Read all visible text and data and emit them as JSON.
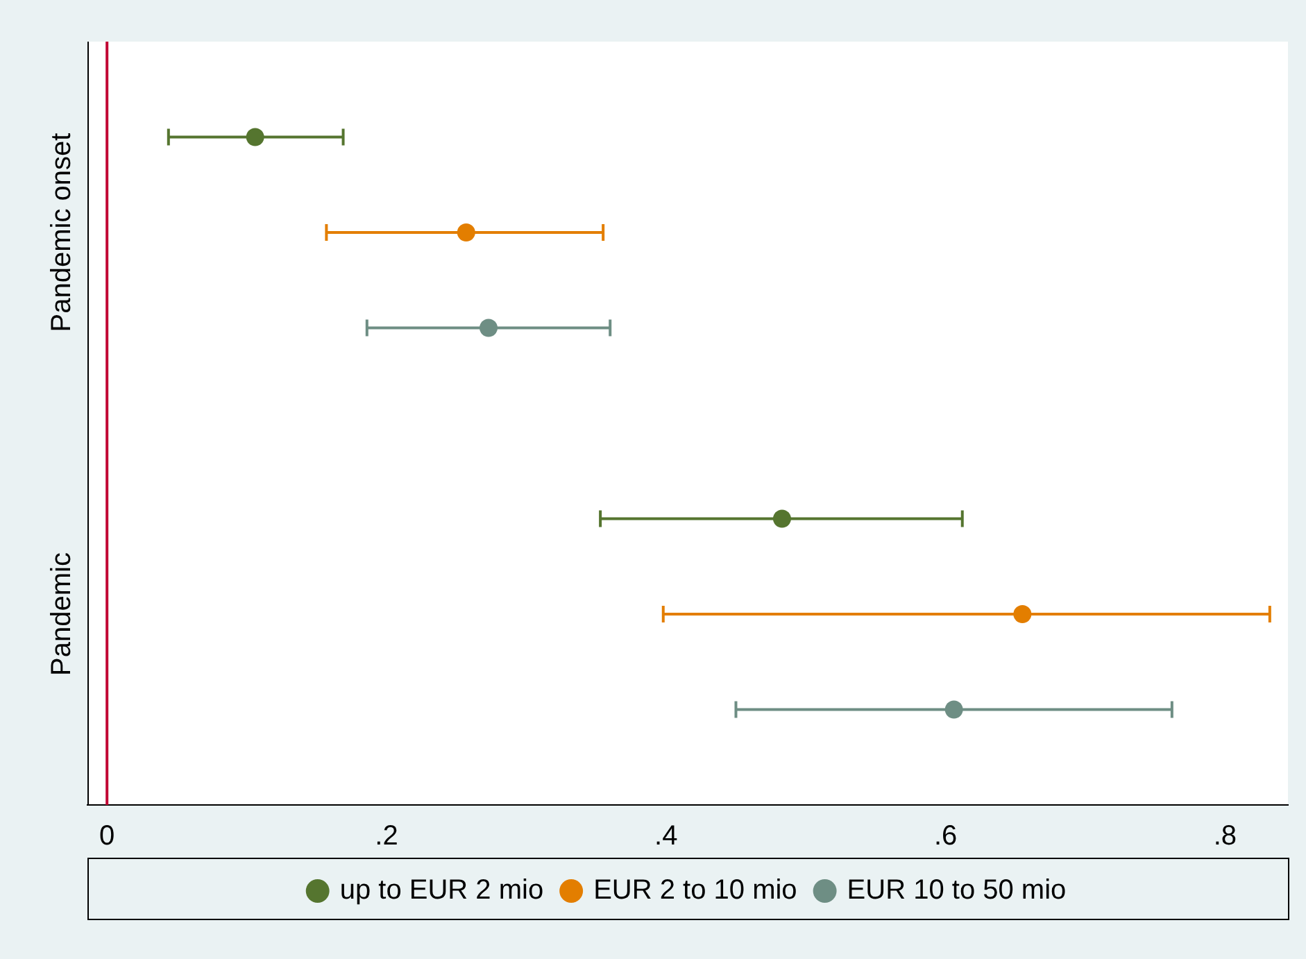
{
  "chart_data": {
    "type": "scatter",
    "orientation": "horizontal",
    "categories": [
      null,
      "Pandemic onset",
      null,
      null,
      null,
      "Pandemic",
      null
    ],
    "series": [
      {
        "name": "up to EUR 2 mio",
        "color": "#55752f",
        "values": [
          0.106,
          null,
          null,
          null,
          0.483,
          null,
          null
        ],
        "errors": [
          [
            0.044,
            0.169
          ],
          null,
          null,
          null,
          [
            0.353,
            0.612
          ],
          null,
          null
        ]
      },
      {
        "name": "EUR 2 to 10 mio",
        "color": "#e37e00",
        "values": [
          null,
          0.257,
          null,
          null,
          null,
          0.655,
          null
        ],
        "errors": [
          null,
          [
            0.157,
            0.355
          ],
          null,
          null,
          null,
          [
            0.398,
            0.832
          ],
          null
        ]
      },
      {
        "name": "EUR 10 to 50 mio",
        "color": "#6e8e84",
        "values": [
          null,
          null,
          0.273,
          null,
          null,
          null,
          0.606
        ],
        "errors": [
          null,
          null,
          [
            0.186,
            0.36
          ],
          null,
          null,
          null,
          [
            0.45,
            0.762
          ]
        ]
      }
    ],
    "xlim": [
      -0.014,
      0.845
    ],
    "xticks": [
      0,
      {
        "value": 0.2,
        "label": ".2"
      },
      {
        "value": 0.4,
        "label": ".4"
      },
      {
        "value": 0.6,
        "label": ".6"
      },
      {
        "value": 0.8,
        "label": ".8"
      }
    ],
    "ref_lines": [
      {
        "axis": "x",
        "value": 0,
        "color": "#c10534"
      }
    ],
    "legend": "bottom",
    "marker": "circle"
  }
}
